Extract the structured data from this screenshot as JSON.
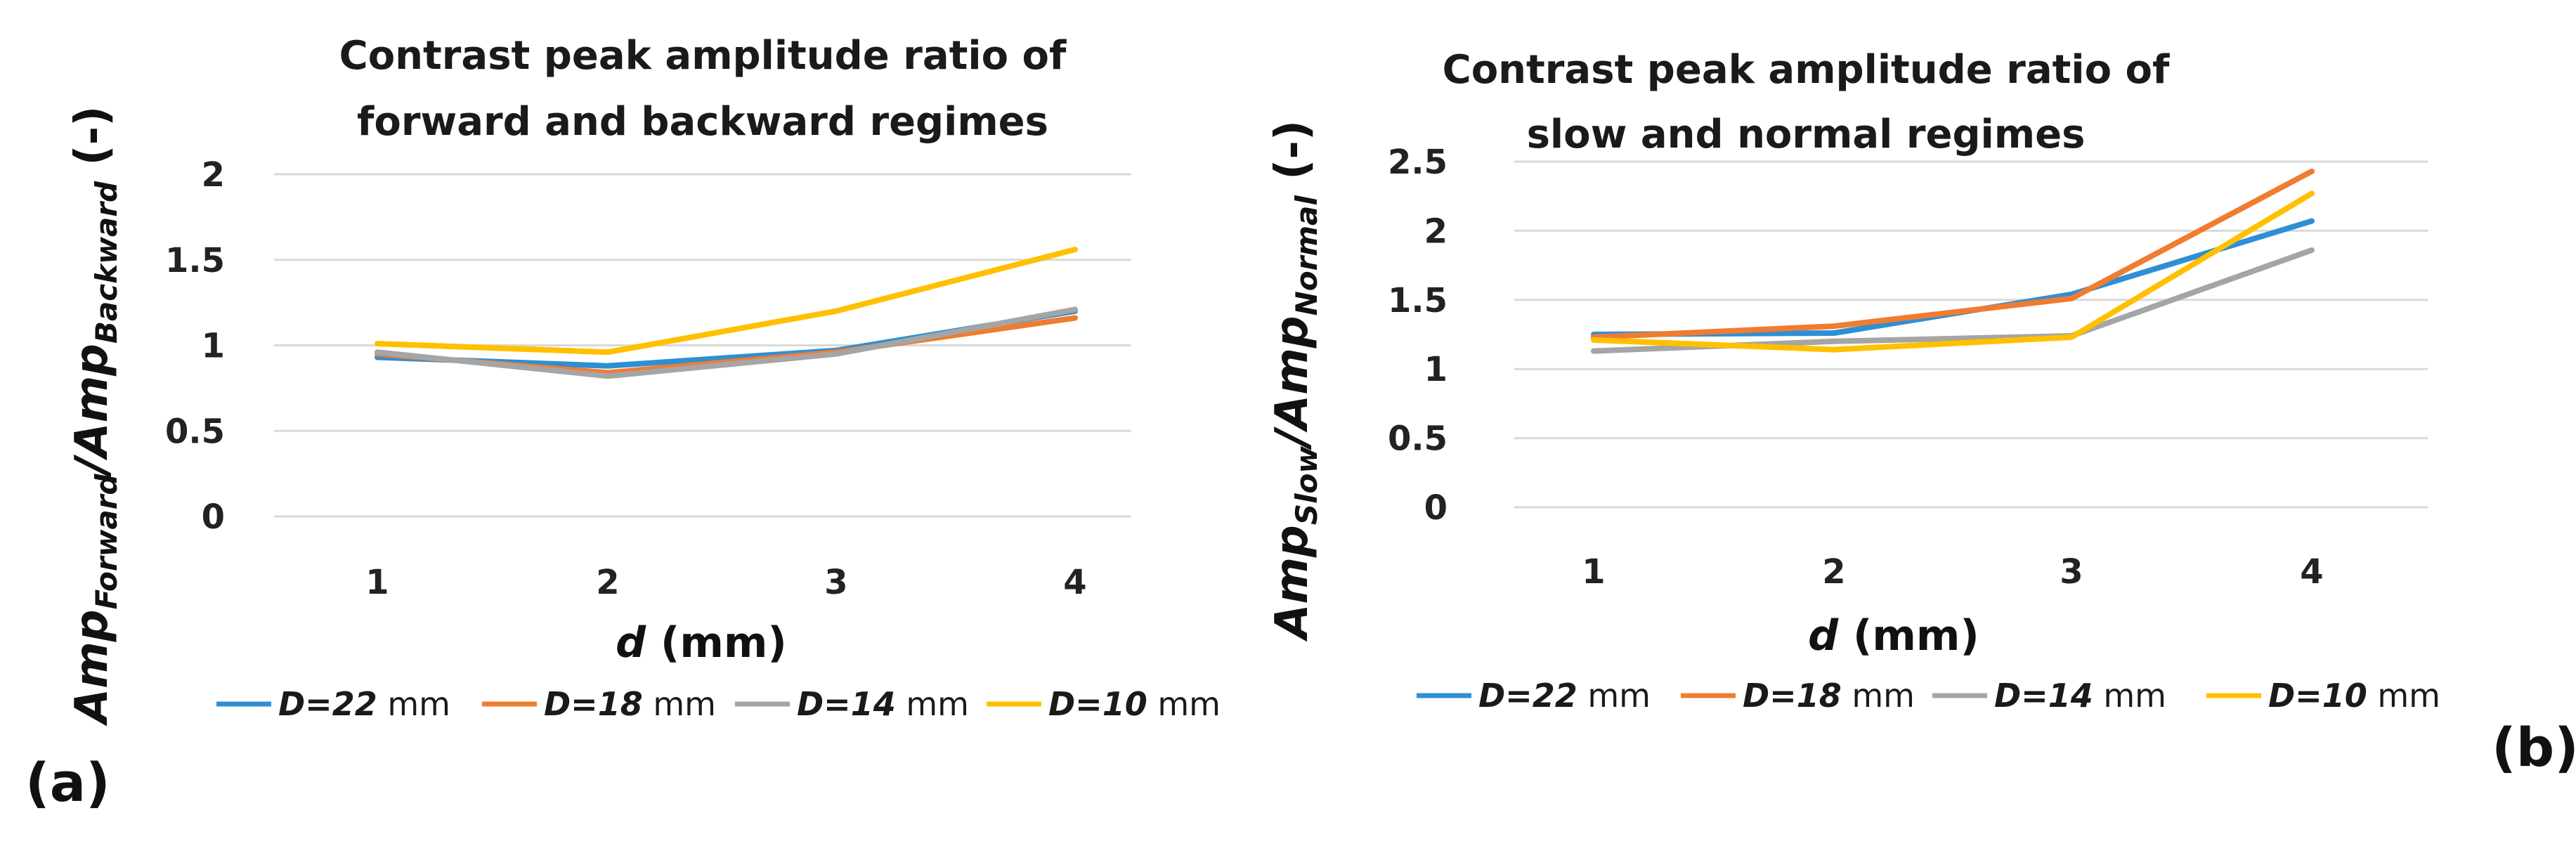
{
  "chart_data": [
    {
      "type": "line",
      "panel_label": "(a)",
      "title_lines": [
        "Contrast peak amplitude ratio of",
        "forward and backward regimes"
      ],
      "xlabel_var": "d",
      "xlabel_unit": " (mm)",
      "ylabel_main": "Amp",
      "ylabel_sub1": "Forward",
      "ylabel_sep": "/Amp",
      "ylabel_sub2": "Backward",
      "ylabel_unit": " (-)",
      "categories": [
        "1",
        "2",
        "3",
        "4"
      ],
      "yticks": [
        "0",
        "0.5",
        "1",
        "1.5",
        "2"
      ],
      "ylim": [
        0,
        2
      ],
      "grid": true,
      "legend_position": "bottom",
      "series": [
        {
          "name_var": "D=22",
          "name_unit": " mm",
          "color": "#2e8fd4",
          "values": [
            0.93,
            0.88,
            0.97,
            1.2
          ]
        },
        {
          "name_var": "D=18",
          "name_unit": " mm",
          "color": "#f07c31",
          "values": [
            0.95,
            0.84,
            0.96,
            1.16
          ]
        },
        {
          "name_var": "D=14",
          "name_unit": " mm",
          "color": "#a5a5a5",
          "values": [
            0.96,
            0.82,
            0.95,
            1.21
          ]
        },
        {
          "name_var": "D=10",
          "name_unit": " mm",
          "color": "#ffc000",
          "values": [
            1.01,
            0.96,
            1.2,
            1.56
          ]
        }
      ]
    },
    {
      "type": "line",
      "panel_label": "(b)",
      "title_lines": [
        "Contrast peak amplitude ratio of",
        "slow and normal regimes"
      ],
      "xlabel_var": "d",
      "xlabel_unit": " (mm)",
      "ylabel_main": "Amp",
      "ylabel_sub1": "Slow",
      "ylabel_sep": "/Amp",
      "ylabel_sub2": "Normal",
      "ylabel_unit": " (-)",
      "categories": [
        "1",
        "2",
        "3",
        "4"
      ],
      "yticks": [
        "0",
        "0.5",
        "1",
        "1.5",
        "2",
        "2.5"
      ],
      "ylim": [
        0,
        2.5
      ],
      "grid": true,
      "legend_position": "bottom",
      "series": [
        {
          "name_var": "D=22",
          "name_unit": " mm",
          "color": "#2e8fd4",
          "values": [
            1.25,
            1.26,
            1.54,
            2.07
          ]
        },
        {
          "name_var": "D=18",
          "name_unit": " mm",
          "color": "#f07c31",
          "values": [
            1.23,
            1.31,
            1.51,
            2.43
          ]
        },
        {
          "name_var": "D=14",
          "name_unit": " mm",
          "color": "#a5a5a5",
          "values": [
            1.13,
            1.2,
            1.24,
            1.86
          ]
        },
        {
          "name_var": "D=10",
          "name_unit": " mm",
          "color": "#ffc000",
          "values": [
            1.21,
            1.14,
            1.23,
            2.27
          ]
        }
      ]
    }
  ]
}
